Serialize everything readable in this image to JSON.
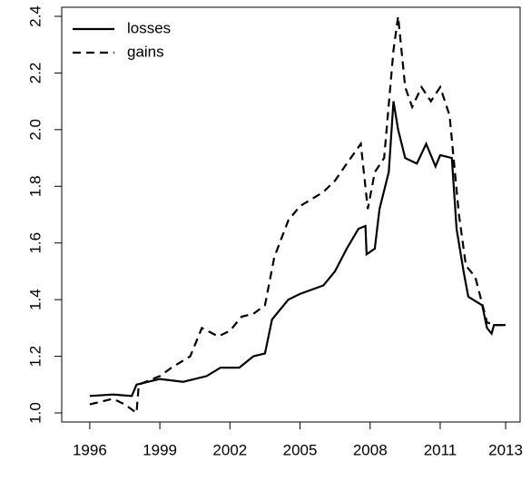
{
  "chart_data": {
    "type": "line",
    "series": [
      {
        "name": "losses",
        "color": "#000000",
        "dash": "solid",
        "x": [
          1996,
          1997,
          1997.8,
          1998.0,
          1999,
          2000,
          2001,
          2001.6,
          2002.4,
          2003,
          2003.5,
          2003.8,
          2004.5,
          2005,
          2006,
          2006.5,
          2007,
          2007.5,
          2007.8,
          2007.85,
          2008.2,
          2008.4,
          2008.8,
          2009.0,
          2009.2,
          2009.5,
          2010,
          2010.4,
          2010.8,
          2011,
          2011.5,
          2011.7,
          2012,
          2012.2,
          2012.8,
          2013,
          2013.2,
          2013.3,
          2013.8
        ],
        "values": [
          1.06,
          1.065,
          1.06,
          1.1,
          1.12,
          1.11,
          1.13,
          1.16,
          1.16,
          1.2,
          1.21,
          1.33,
          1.4,
          1.42,
          1.45,
          1.5,
          1.58,
          1.65,
          1.66,
          1.56,
          1.58,
          1.72,
          1.85,
          2.1,
          2.0,
          1.9,
          1.88,
          1.95,
          1.87,
          1.91,
          1.9,
          1.65,
          1.5,
          1.41,
          1.38,
          1.3,
          1.28,
          1.31,
          1.31
        ]
      },
      {
        "name": "gains",
        "color": "#000000",
        "dash": "dashed",
        "x": [
          1996,
          1997,
          1997.5,
          1998,
          1998.1,
          1999,
          1999.5,
          2000.3,
          2000.8,
          2001.5,
          2002,
          2002.5,
          2003,
          2003.5,
          2003.9,
          2004.5,
          2005,
          2006,
          2006.5,
          2007,
          2007.6,
          2007.9,
          2008.2,
          2008.6,
          2009.0,
          2009.2,
          2009.5,
          2009.8,
          2010.2,
          2010.6,
          2011,
          2011.4,
          2011.8,
          2012.1,
          2012.5,
          2013,
          2013.3,
          2013.8
        ],
        "values": [
          1.03,
          1.05,
          1.03,
          1.0,
          1.1,
          1.13,
          1.16,
          1.2,
          1.3,
          1.27,
          1.29,
          1.34,
          1.35,
          1.38,
          1.55,
          1.68,
          1.73,
          1.78,
          1.82,
          1.88,
          1.95,
          1.72,
          1.85,
          1.9,
          2.28,
          2.4,
          2.15,
          2.08,
          2.15,
          2.1,
          2.15,
          2.05,
          1.7,
          1.52,
          1.48,
          1.32,
          1.31,
          1.31
        ]
      }
    ],
    "xlim": [
      1994.8,
      2014.42
    ],
    "xticks": [
      1996,
      1999,
      2002,
      2005,
      2008,
      2011,
      {
        "value": 2013.8,
        "label": "2013"
      }
    ],
    "ylim": [
      0.968,
      2.432
    ],
    "yticks": [
      {
        "value": 1,
        "label": "1.0"
      },
      1.2,
      1.4,
      1.6,
      1.8,
      {
        "value": 2,
        "label": "2.0"
      },
      2.2,
      2.4
    ],
    "legend": "top-left"
  }
}
